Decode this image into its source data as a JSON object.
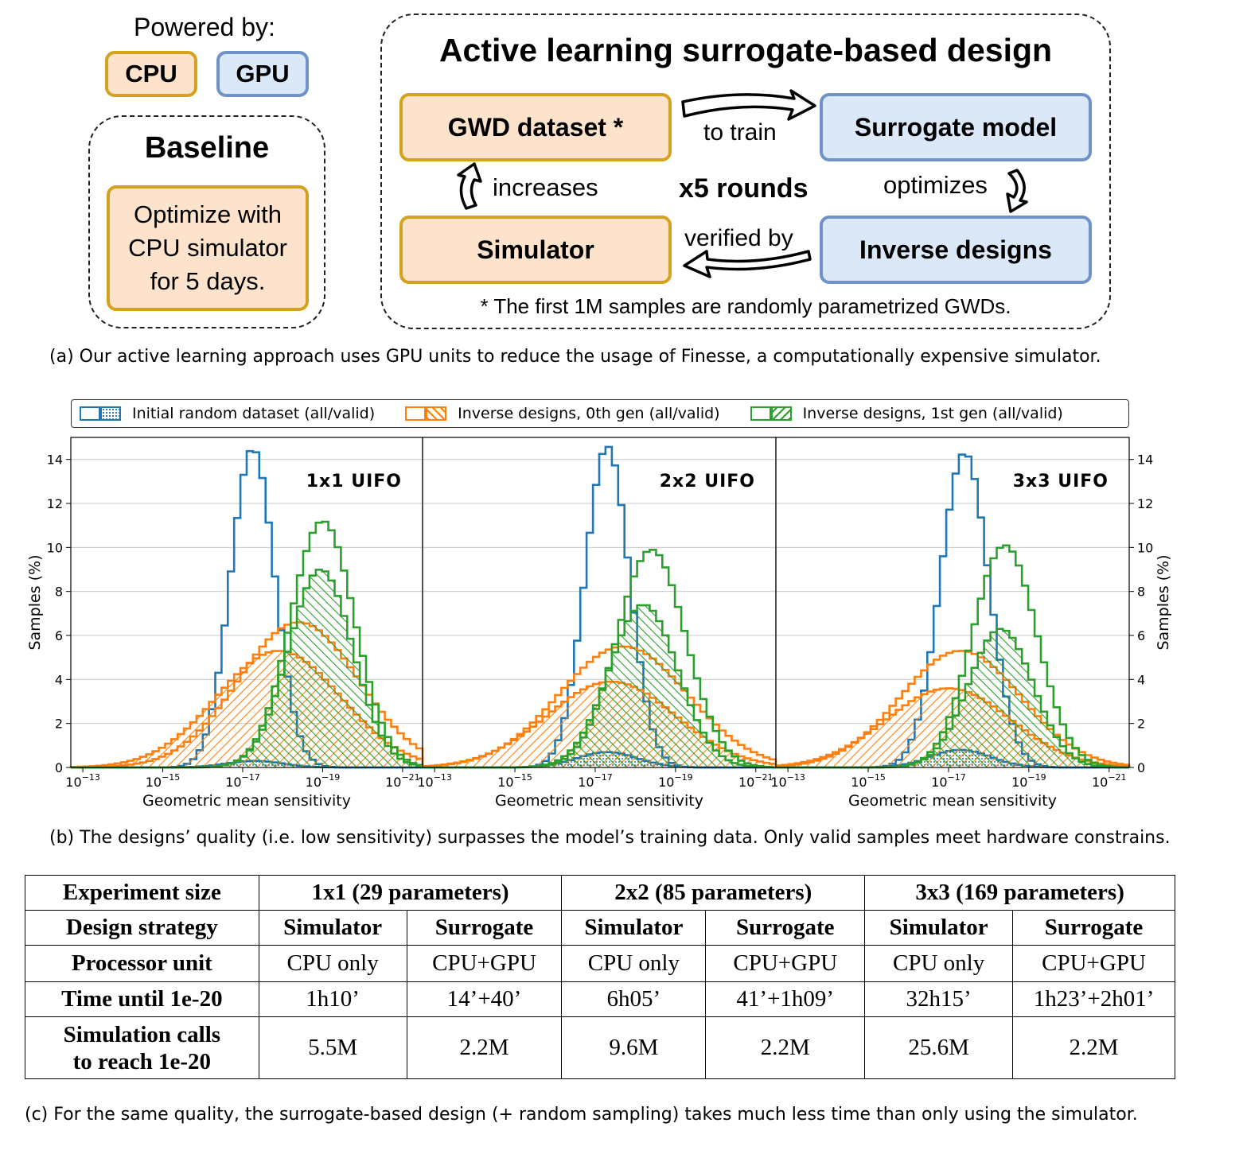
{
  "diagram": {
    "powered_by": "Powered by:",
    "cpu_label": "CPU",
    "gpu_label": "GPU",
    "baseline_title": "Baseline",
    "baseline_text": "Optimize with CPU simulator for 5 days.",
    "active_title": "Active learning surrogate-based design",
    "gwd_dataset": "GWD dataset *",
    "surrogate_model": "Surrogate model",
    "simulator": "Simulator",
    "inverse_designs": "Inverse designs",
    "to_train": "to train",
    "increases": "increases",
    "rounds": "x5 rounds",
    "optimizes": "optimizes",
    "verified_by": "verified by",
    "footnote": "* The first 1M samples are randomly parametrized GWDs.",
    "caption_a": "(a) Our active learning approach uses GPU units to reduce the usage of Finesse, a computationally expensive simulator."
  },
  "chart_data": {
    "type": "histogram",
    "xlabel": "Geometric mean sensitivity",
    "ylabel": "Samples (%)",
    "ylim": [
      0,
      15
    ],
    "yticks": [
      "0",
      "2",
      "4",
      "6",
      "8",
      "10",
      "12",
      "14"
    ],
    "xticks": [
      "10−13",
      "10−15",
      "10−17",
      "10−19",
      "10−21"
    ],
    "xtick_exponents": [
      -13,
      -15,
      -17,
      -19,
      -21
    ],
    "xlim_exponent": [
      -12.7,
      -21.5
    ],
    "legend": [
      {
        "name": "Initial random dataset (all/valid)",
        "color": "#1f77b4"
      },
      {
        "name": "Inverse designs, 0th gen (all/valid)",
        "color": "#ff7f0e"
      },
      {
        "name": "Inverse designs, 1st gen (all/valid)",
        "color": "#2ca02c"
      }
    ],
    "panels": [
      {
        "title": "1x1 UIFO",
        "series": [
          {
            "name": "Initial random dataset (all)",
            "color": "#1f77b4",
            "hatch": "none",
            "peak_exp": -17.25,
            "width": 0.55,
            "peak": 14.5
          },
          {
            "name": "Initial random dataset (valid)",
            "color": "#1f77b4",
            "hatch": "dots",
            "peak_exp": -17.3,
            "width": 0.7,
            "peak": 0.3
          },
          {
            "name": "Inverse designs, 0th gen (all)",
            "color": "#ff7f0e",
            "hatch": "none",
            "peak_exp": -18.4,
            "width": 1.5,
            "peak": 6.6
          },
          {
            "name": "Inverse designs, 0th gen (valid)",
            "color": "#ff7f0e",
            "hatch": "back",
            "peak_exp": -17.9,
            "width": 1.55,
            "peak": 5.3
          },
          {
            "name": "Inverse designs, 1st gen (all)",
            "color": "#2ca02c",
            "hatch": "none",
            "peak_exp": -19.0,
            "width": 0.8,
            "peak": 11.2
          },
          {
            "name": "Inverse designs, 1st gen (valid)",
            "color": "#2ca02c",
            "hatch": "fwd",
            "peak_exp": -18.95,
            "width": 0.8,
            "peak": 9.0
          }
        ]
      },
      {
        "title": "2x2 UIFO",
        "series": [
          {
            "name": "Initial random dataset (all)",
            "color": "#1f77b4",
            "hatch": "none",
            "peak_exp": -17.3,
            "width": 0.55,
            "peak": 14.6
          },
          {
            "name": "Initial random dataset (valid)",
            "color": "#1f77b4",
            "hatch": "dots",
            "peak_exp": -17.3,
            "width": 0.75,
            "peak": 0.7
          },
          {
            "name": "Inverse designs, 0th gen (all)",
            "color": "#ff7f0e",
            "hatch": "none",
            "peak_exp": -17.7,
            "width": 1.6,
            "peak": 5.5
          },
          {
            "name": "Inverse designs, 0th gen (valid)",
            "color": "#ff7f0e",
            "hatch": "back",
            "peak_exp": -17.4,
            "width": 1.6,
            "peak": 3.9
          },
          {
            "name": "Inverse designs, 1st gen (all)",
            "color": "#2ca02c",
            "hatch": "none",
            "peak_exp": -18.4,
            "width": 0.85,
            "peak": 9.9
          },
          {
            "name": "Inverse designs, 1st gen (valid)",
            "color": "#2ca02c",
            "hatch": "fwd",
            "peak_exp": -18.2,
            "width": 0.85,
            "peak": 7.4
          }
        ]
      },
      {
        "title": "3x3 UIFO",
        "series": [
          {
            "name": "Initial random dataset (all)",
            "color": "#1f77b4",
            "hatch": "none",
            "peak_exp": -17.4,
            "width": 0.6,
            "peak": 14.3
          },
          {
            "name": "Initial random dataset (valid)",
            "color": "#1f77b4",
            "hatch": "dots",
            "peak_exp": -17.3,
            "width": 0.75,
            "peak": 0.8
          },
          {
            "name": "Inverse designs, 0th gen (all)",
            "color": "#ff7f0e",
            "hatch": "none",
            "peak_exp": -17.3,
            "width": 1.5,
            "peak": 5.3
          },
          {
            "name": "Inverse designs, 0th gen (valid)",
            "color": "#ff7f0e",
            "hatch": "back",
            "peak_exp": -17.0,
            "width": 1.55,
            "peak": 3.6
          },
          {
            "name": "Inverse designs, 1st gen (all)",
            "color": "#2ca02c",
            "hatch": "none",
            "peak_exp": -18.4,
            "width": 0.8,
            "peak": 10.1
          },
          {
            "name": "Inverse designs, 1st gen (valid)",
            "color": "#2ca02c",
            "hatch": "fwd",
            "peak_exp": -18.3,
            "width": 0.8,
            "peak": 6.3
          }
        ]
      }
    ]
  },
  "caption_b": "(b) The designs’ quality (i.e. low sensitivity) surpasses the model’s training data. Only valid samples meet hardware constrains.",
  "table": {
    "experiment_size_label": "Experiment size",
    "sizes": [
      "1x1 (29 parameters)",
      "2x2 (85 parameters)",
      "3x3 (169 parameters)"
    ],
    "rows": [
      {
        "label": "Design strategy",
        "bold": true,
        "cells": [
          "Simulator",
          "Surrogate",
          "Simulator",
          "Surrogate",
          "Simulator",
          "Surrogate"
        ]
      },
      {
        "label": "Processor unit",
        "bold": false,
        "cells": [
          "CPU only",
          "CPU+GPU",
          "CPU only",
          "CPU+GPU",
          "CPU only",
          "CPU+GPU"
        ]
      },
      {
        "label": "Time until 1e-20",
        "bold": false,
        "cells": [
          "1h10’",
          "14’+40’",
          "6h05’",
          "41’+1h09’",
          "32h15’",
          "1h23’+2h01’"
        ]
      }
    ],
    "sim_calls_label_1": "Simulation calls",
    "sim_calls_label_2": "to reach 1e-20",
    "sim_calls": [
      "5.5M",
      "2.2M",
      "9.6M",
      "2.2M",
      "25.6M",
      "2.2M"
    ]
  },
  "caption_c": "(c) For the same quality, the surrogate-based design (+ random sampling) takes much less time than only using the simulator."
}
